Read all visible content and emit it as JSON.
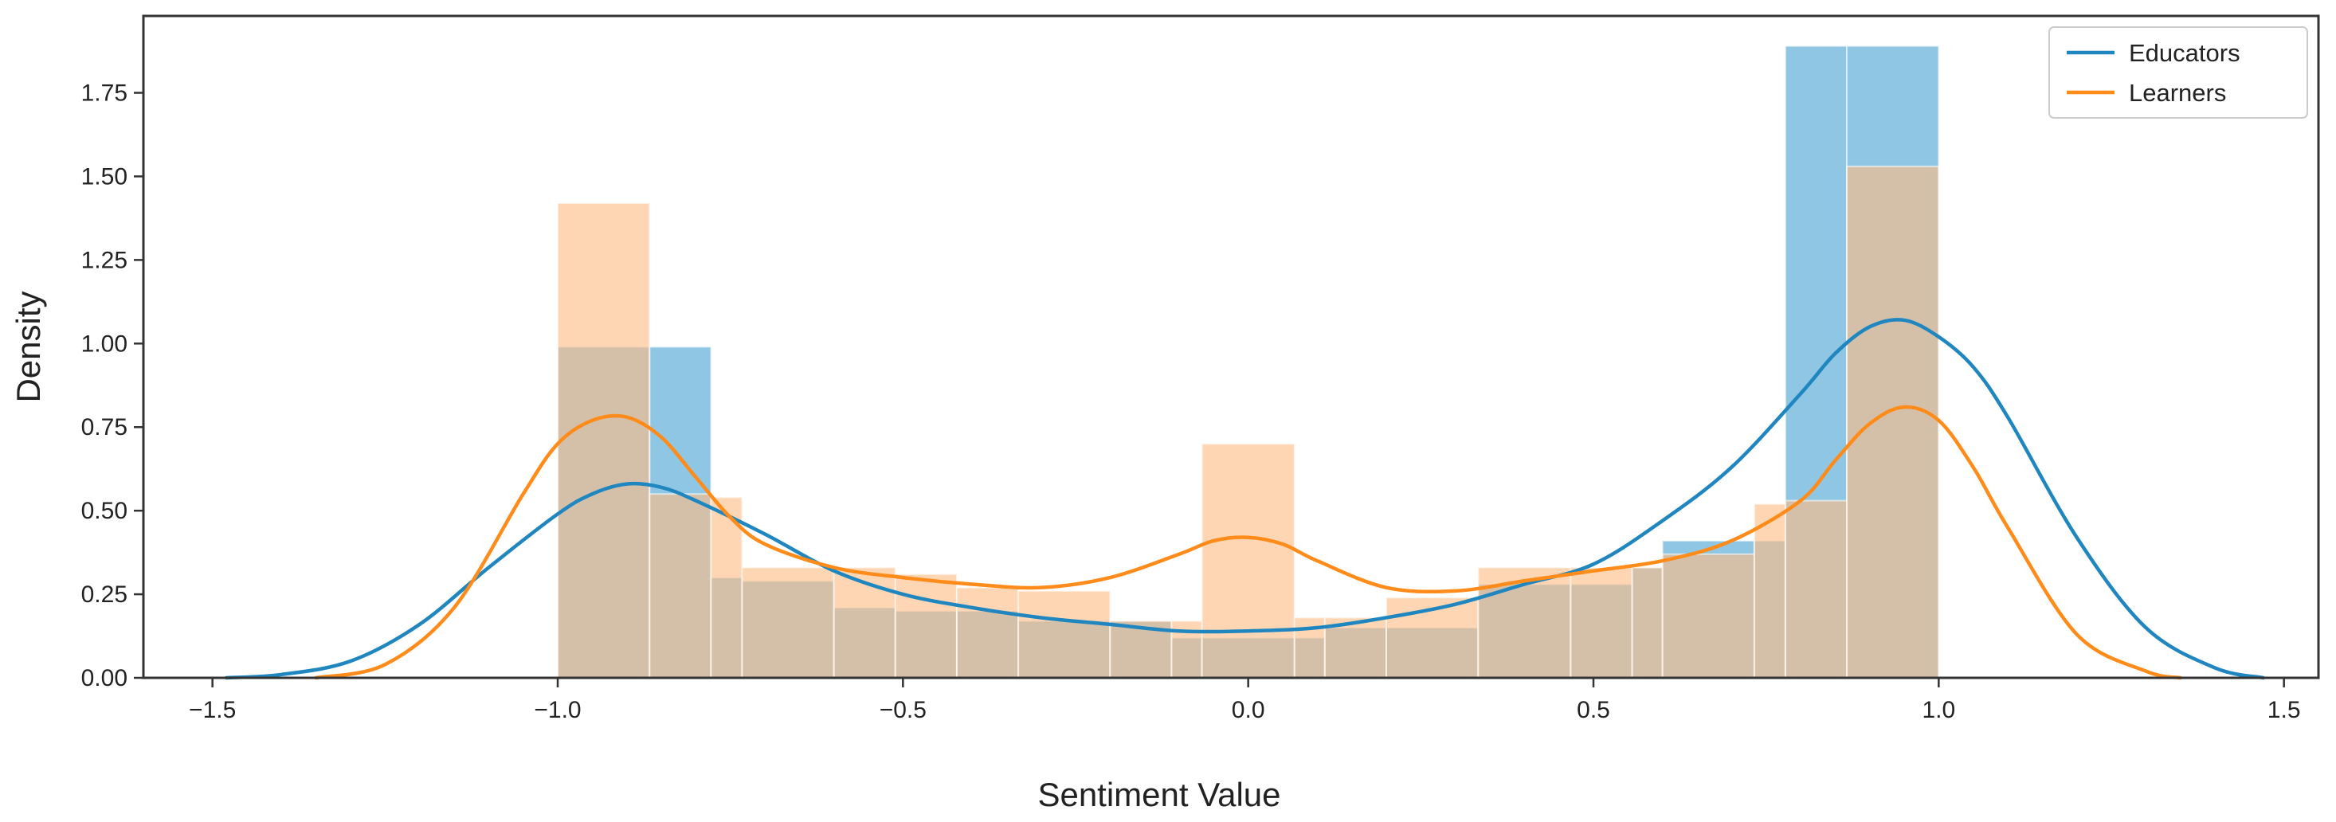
{
  "chart_data": {
    "type": "histogram-kde",
    "title": "",
    "xlabel": "Sentiment Value",
    "ylabel": "Density",
    "xlim": [
      -1.6,
      1.55
    ],
    "ylim": [
      0,
      1.98
    ],
    "x_ticks": [
      -1.5,
      -1.0,
      -0.5,
      0.0,
      0.5,
      1.0,
      1.5
    ],
    "x_tick_labels": [
      "−1.5",
      "−1.0",
      "−0.5",
      "0.0",
      "0.5",
      "1.0",
      "1.5"
    ],
    "y_ticks": [
      0.0,
      0.25,
      0.5,
      0.75,
      1.0,
      1.25,
      1.5,
      1.75
    ],
    "y_tick_labels": [
      "0.00",
      "0.25",
      "0.50",
      "0.75",
      "1.00",
      "1.25",
      "1.50",
      "1.75"
    ],
    "grid": false,
    "legend_position": "top-right",
    "colors": {
      "Educators": "#1f86c0",
      "Learners": "#ff8c1a",
      "Educators_bar": "#5eaed9",
      "Learners_bar": "#ffbd84"
    },
    "series": [
      {
        "name": "Educators",
        "histogram": {
          "bin_edges": [
            -1.0,
            -0.867,
            -0.778,
            -0.733,
            -0.6,
            -0.511,
            -0.422,
            -0.333,
            -0.2,
            -0.111,
            -0.067,
            0.067,
            0.111,
            0.2,
            0.333,
            0.467,
            0.556,
            0.6,
            0.733,
            0.778,
            0.867,
            1.0
          ],
          "values": [
            0.99,
            0.99,
            0.3,
            0.29,
            0.21,
            0.2,
            0.2,
            0.17,
            0.17,
            0.12,
            0.12,
            0.12,
            0.15,
            0.15,
            0.28,
            0.28,
            0.33,
            0.41,
            0.41,
            1.89,
            1.89
          ]
        },
        "kde": {
          "x": [
            -1.48,
            -1.4,
            -1.3,
            -1.2,
            -1.1,
            -1.0,
            -0.95,
            -0.9,
            -0.85,
            -0.8,
            -0.7,
            -0.6,
            -0.5,
            -0.4,
            -0.3,
            -0.2,
            -0.1,
            0.0,
            0.1,
            0.2,
            0.3,
            0.4,
            0.5,
            0.6,
            0.7,
            0.8,
            0.85,
            0.9,
            0.95,
            1.0,
            1.05,
            1.1,
            1.2,
            1.3,
            1.4,
            1.47
          ],
          "y": [
            0.0,
            0.01,
            0.05,
            0.16,
            0.33,
            0.49,
            0.55,
            0.58,
            0.57,
            0.53,
            0.43,
            0.32,
            0.25,
            0.21,
            0.18,
            0.16,
            0.14,
            0.14,
            0.15,
            0.18,
            0.22,
            0.28,
            0.34,
            0.47,
            0.63,
            0.85,
            0.97,
            1.05,
            1.07,
            1.02,
            0.93,
            0.78,
            0.42,
            0.15,
            0.03,
            0.0
          ]
        }
      },
      {
        "name": "Learners",
        "histogram": {
          "bin_edges": [
            -1.0,
            -0.867,
            -0.778,
            -0.733,
            -0.6,
            -0.511,
            -0.422,
            -0.333,
            -0.2,
            -0.111,
            -0.067,
            0.067,
            0.111,
            0.2,
            0.333,
            0.467,
            0.556,
            0.6,
            0.733,
            0.778,
            0.867,
            1.0
          ],
          "values": [
            1.42,
            0.55,
            0.54,
            0.33,
            0.33,
            0.31,
            0.27,
            0.26,
            0.17,
            0.17,
            0.7,
            0.18,
            0.18,
            0.24,
            0.33,
            0.33,
            0.33,
            0.37,
            0.52,
            0.53,
            1.53
          ]
        },
        "kde": {
          "x": [
            -1.35,
            -1.25,
            -1.15,
            -1.05,
            -1.0,
            -0.95,
            -0.9,
            -0.85,
            -0.8,
            -0.75,
            -0.7,
            -0.6,
            -0.5,
            -0.4,
            -0.3,
            -0.2,
            -0.1,
            -0.05,
            0.0,
            0.05,
            0.1,
            0.2,
            0.3,
            0.4,
            0.5,
            0.6,
            0.7,
            0.8,
            0.85,
            0.9,
            0.95,
            1.0,
            1.05,
            1.1,
            1.2,
            1.3,
            1.35
          ],
          "y": [
            0.0,
            0.04,
            0.21,
            0.55,
            0.7,
            0.77,
            0.78,
            0.72,
            0.6,
            0.48,
            0.4,
            0.33,
            0.3,
            0.28,
            0.27,
            0.3,
            0.37,
            0.41,
            0.42,
            0.4,
            0.35,
            0.27,
            0.26,
            0.29,
            0.32,
            0.35,
            0.41,
            0.53,
            0.65,
            0.76,
            0.81,
            0.77,
            0.63,
            0.45,
            0.13,
            0.02,
            0.0
          ]
        }
      }
    ]
  }
}
